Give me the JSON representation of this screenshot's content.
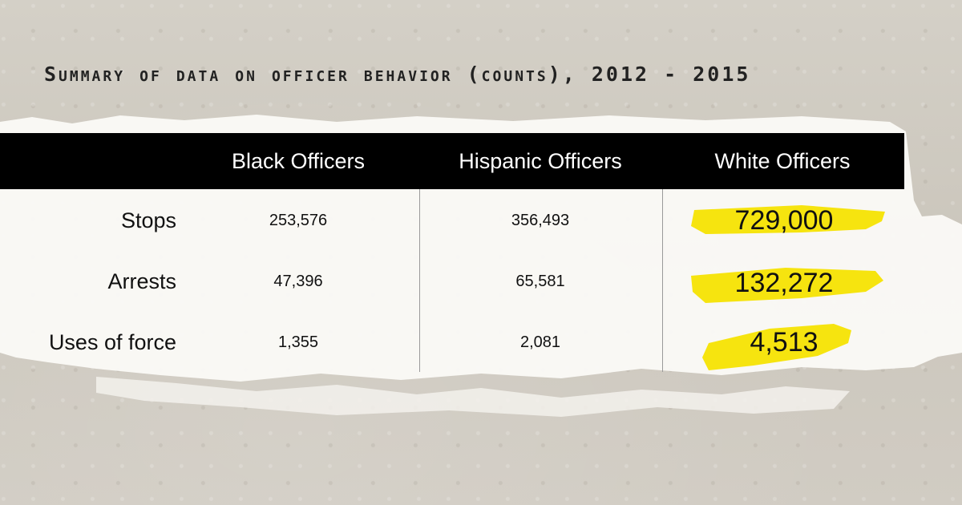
{
  "title": "Summary of data on officer behavior (counts), 2012 - 2015",
  "colors": {
    "highlight": "#f6e40f",
    "header_bg": "#000000",
    "header_text": "#ffffff"
  },
  "chart_data": {
    "type": "table",
    "title": "Summary of data on officer behavior (counts), 2012 - 2015",
    "columns": [
      "Black Officers",
      "Hispanic Officers",
      "White Officers"
    ],
    "rows": [
      {
        "label": "Stops",
        "values": [
          "253,576",
          "356,493",
          "729,000"
        ]
      },
      {
        "label": "Arrests",
        "values": [
          "47,396",
          "65,581",
          "132,272"
        ]
      },
      {
        "label": "Uses of force",
        "values": [
          "1,355",
          "2,081",
          "4,513"
        ]
      }
    ],
    "highlighted_column": "White Officers"
  }
}
